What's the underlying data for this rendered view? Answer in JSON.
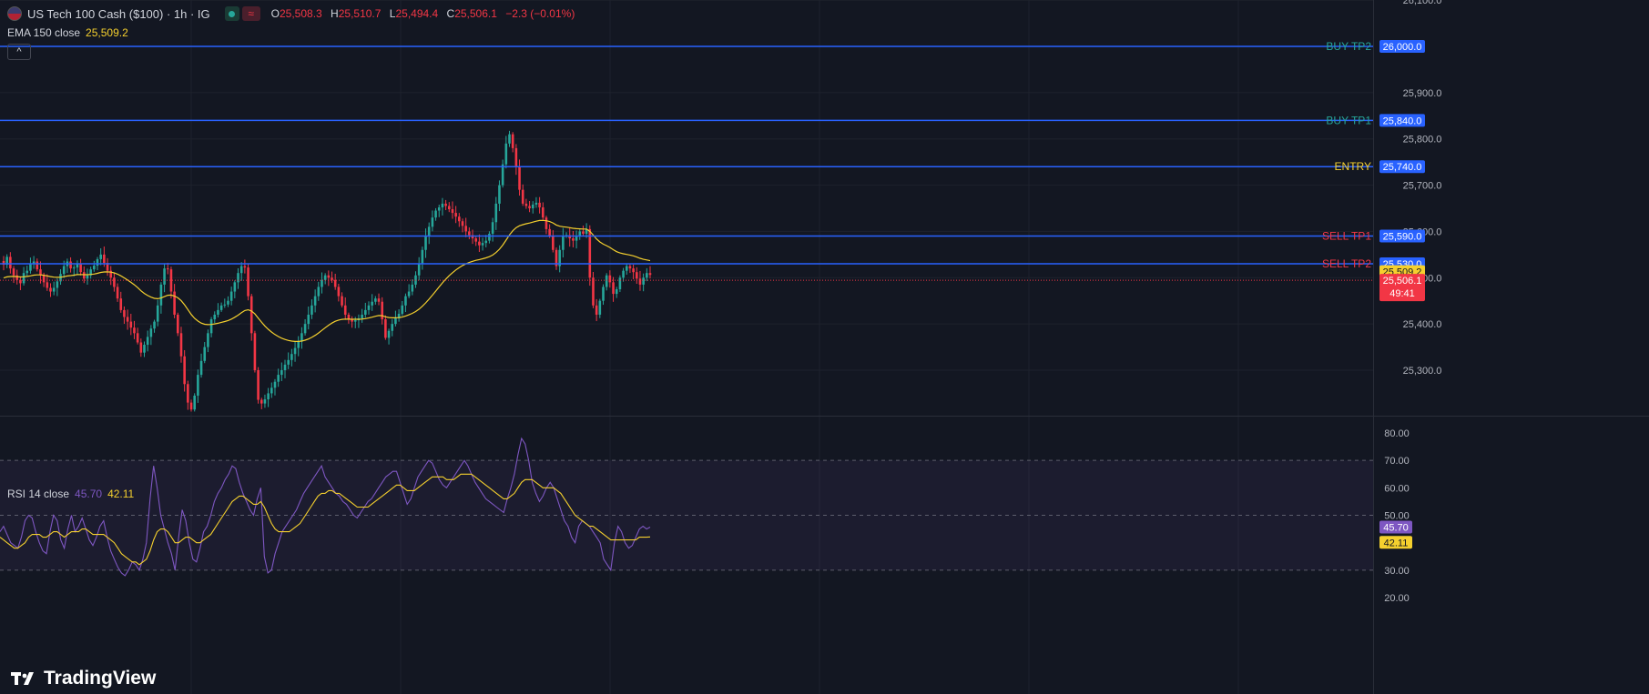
{
  "header": {
    "symbol": "US Tech 100 Cash ($100) · 1h · IG",
    "wave_icon_text": "≈",
    "ohlc": {
      "o_label": "O",
      "o": "25,508.3",
      "h_label": "H",
      "h": "25,510.7",
      "l_label": "L",
      "l": "25,494.4",
      "c_label": "C",
      "c": "25,506.1",
      "change": "−2.3 (−0.01%)"
    }
  },
  "ema": {
    "label": "EMA 150 close",
    "value": "25,509.2"
  },
  "collapse_icon": "^",
  "rsi": {
    "label": "RSI 14 close",
    "value": "45.70",
    "ma_value": "42.11"
  },
  "logo": {
    "text": "TradingView"
  },
  "colors": {
    "background": "#131722",
    "up": "#26a69a",
    "down": "#f23645",
    "level_line": "#2962ff",
    "ema": "#f5d02e",
    "rsi": "#7e57c2",
    "rsi_ma": "#f5d02e",
    "buy_label": "#26a69a",
    "sell_label": "#f23645",
    "entry_label": "#f5d02e"
  },
  "chart_data": [
    {
      "type": "candlestick",
      "title": "US Tech 100 Cash ($100) · 1h · IG",
      "y_ticks": [
        "25,300.0",
        "25,400.0",
        "25,500.0",
        "25,600.0",
        "25,700.0",
        "25,800.0",
        "25,900.0",
        "26,100.0"
      ],
      "ylim": [
        25200,
        26100
      ],
      "grid": true,
      "levels": [
        {
          "label": "BUY TP2",
          "value": 26000.0,
          "tag": "26,000.0",
          "kind": "buy"
        },
        {
          "label": "BUY TP1",
          "value": 25840.0,
          "tag": "25,840.0",
          "kind": "buy"
        },
        {
          "label": "ENTRY",
          "value": 25740.0,
          "tag": "25,740.0",
          "kind": "entry"
        },
        {
          "label": "SELL TP1",
          "value": 25590.0,
          "tag": "25,590.0",
          "kind": "sell"
        },
        {
          "label": "SELL TP2",
          "value": 25530.0,
          "tag": "25,530.0",
          "kind": "sell"
        }
      ],
      "ema_tag": "25,509.2",
      "last_price": {
        "value": 25506.1,
        "tag": "25,506.1",
        "countdown": "49:41"
      },
      "close_series": [
        25528,
        25545,
        25520,
        25505,
        25495,
        25488,
        25510,
        25515,
        25530,
        25535,
        25518,
        25505,
        25490,
        25478,
        25470,
        25478,
        25492,
        25508,
        25525,
        25535,
        25520,
        25522,
        25530,
        25512,
        25498,
        25505,
        25518,
        25526,
        25540,
        25550,
        25532,
        25515,
        25500,
        25480,
        25455,
        25430,
        25415,
        25405,
        25392,
        25380,
        25360,
        25338,
        25355,
        25372,
        25390,
        25405,
        25440,
        25485,
        25520,
        25518,
        25470,
        25420,
        25380,
        25330,
        25270,
        25230,
        25215,
        25245,
        25290,
        25320,
        25350,
        25380,
        25410,
        25420,
        25430,
        25440,
        25442,
        25450,
        25470,
        25490,
        25510,
        25525,
        25522,
        25460,
        25380,
        25300,
        25236,
        25228,
        25237,
        25250,
        25262,
        25275,
        25290,
        25300,
        25312,
        25322,
        25335,
        25348,
        25362,
        25380,
        25400,
        25420,
        25440,
        25460,
        25480,
        25495,
        25505,
        25500,
        25495,
        25480,
        25460,
        25440,
        25420,
        25410,
        25405,
        25408,
        25412,
        25420,
        25430,
        25440,
        25448,
        25455,
        25448,
        25410,
        25370,
        25385,
        25400,
        25412,
        25422,
        25440,
        25460,
        25470,
        25485,
        25505,
        25530,
        25560,
        25590,
        25610,
        25630,
        25645,
        25652,
        25660,
        25655,
        25648,
        25640,
        25632,
        25622,
        25612,
        25600,
        25592,
        25585,
        25578,
        25570,
        25575,
        25580,
        25595,
        25620,
        25660,
        25700,
        25745,
        25790,
        25810,
        25780,
        25740,
        25690,
        25660,
        25655,
        25650,
        25658,
        25662,
        25652,
        25630,
        25605,
        25590,
        25560,
        25525,
        25560,
        25590,
        25592,
        25585,
        25580,
        25590,
        25600,
        25595,
        25605,
        25500,
        25440,
        25420,
        25450,
        25480,
        25505,
        25490,
        25465,
        25475,
        25500,
        25515,
        25525,
        25520,
        25512,
        25498,
        25485,
        25500,
        25510,
        25506
      ]
    },
    {
      "type": "line",
      "title": "RSI 14 close",
      "y_ticks": [
        "20.00",
        "30.00",
        "50.00",
        "60.00",
        "70.00",
        "80.00"
      ],
      "ylim": [
        20,
        80
      ],
      "bands": [
        30,
        50,
        70
      ],
      "series": [
        {
          "name": "RSI 14 close",
          "value_tag": "45.70",
          "values": [
            44,
            46,
            43,
            40,
            39,
            38,
            42,
            48,
            50,
            49,
            44,
            40,
            37,
            36,
            44,
            50,
            48,
            41,
            38,
            45,
            50,
            44,
            46,
            49,
            45,
            41,
            39,
            42,
            46,
            48,
            42,
            37,
            34,
            31,
            29,
            28,
            30,
            33,
            32,
            30,
            34,
            40,
            56,
            68,
            60,
            50,
            45,
            40,
            36,
            30,
            42,
            52,
            48,
            40,
            34,
            33,
            38,
            44,
            46,
            50,
            55,
            58,
            60,
            63,
            65,
            68,
            67,
            62,
            58,
            55,
            52,
            50,
            56,
            60,
            35,
            29,
            30,
            36,
            40,
            44,
            46,
            48,
            50,
            52,
            55,
            58,
            60,
            62,
            64,
            66,
            68,
            64,
            62,
            60,
            58,
            57,
            55,
            54,
            52,
            50,
            49,
            51,
            53,
            55,
            56,
            58,
            60,
            62,
            64,
            65,
            66,
            66,
            62,
            58,
            54,
            56,
            60,
            64,
            66,
            68,
            70,
            69,
            66,
            63,
            61,
            60,
            62,
            64,
            66,
            68,
            70,
            68,
            65,
            62,
            60,
            58,
            56,
            55,
            54,
            53,
            52,
            51,
            56,
            60,
            65,
            72,
            78,
            76,
            70,
            62,
            58,
            55,
            57,
            60,
            62,
            60,
            56,
            52,
            48,
            46,
            42,
            40,
            46,
            48,
            47,
            46,
            44,
            42,
            40,
            34,
            32,
            30,
            40,
            46,
            44,
            40,
            38,
            39,
            42,
            45,
            46,
            45,
            45.7
          ]
        },
        {
          "name": "RSI-based MA",
          "value_tag": "42.11",
          "values": [
            42,
            41,
            40,
            39,
            38,
            38,
            39,
            40,
            42,
            43,
            43,
            43,
            42,
            42,
            43,
            44,
            44,
            43,
            42,
            43,
            44,
            44,
            44,
            45,
            45,
            44,
            43,
            43,
            43,
            43,
            42,
            41,
            40,
            38,
            36,
            35,
            34,
            33,
            33,
            32,
            33,
            34,
            37,
            41,
            44,
            45,
            45,
            44,
            42,
            40,
            40,
            41,
            42,
            42,
            41,
            40,
            40,
            41,
            42,
            43,
            45,
            47,
            49,
            51,
            53,
            55,
            56,
            57,
            57,
            56,
            55,
            54,
            54,
            55,
            53,
            50,
            47,
            45,
            44,
            44,
            44,
            44,
            45,
            46,
            47,
            49,
            51,
            53,
            55,
            57,
            58,
            58,
            59,
            59,
            58,
            58,
            57,
            56,
            55,
            54,
            53,
            53,
            53,
            53,
            54,
            55,
            56,
            57,
            58,
            59,
            60,
            61,
            61,
            60,
            59,
            59,
            59,
            60,
            61,
            62,
            63,
            64,
            64,
            64,
            64,
            63,
            63,
            63,
            64,
            65,
            65,
            65,
            65,
            64,
            63,
            62,
            61,
            60,
            59,
            58,
            57,
            56,
            56,
            57,
            58,
            60,
            62,
            63,
            63,
            63,
            62,
            61,
            60,
            60,
            60,
            60,
            59,
            58,
            56,
            54,
            52,
            50,
            49,
            48,
            47,
            46,
            46,
            45,
            44,
            43,
            42,
            41,
            41,
            41,
            41,
            41,
            41,
            41,
            41,
            42,
            42,
            42,
            42.11
          ]
        }
      ]
    }
  ]
}
